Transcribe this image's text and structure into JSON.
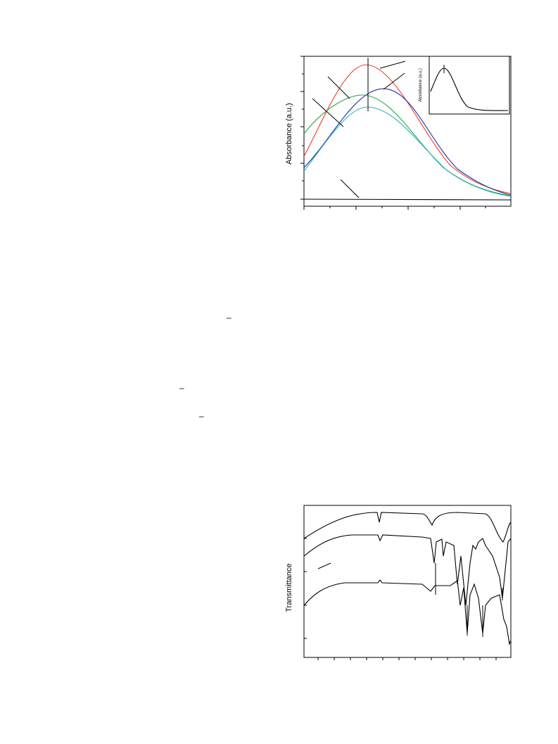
{
  "figure1": {
    "y_label": "Absorbance (a.u.)",
    "inset_y_label": "Absorbance (a.u.)"
  },
  "figure2": {
    "y_label": "Transmittance"
  },
  "marks": [
    "–",
    "–",
    "–"
  ]
}
